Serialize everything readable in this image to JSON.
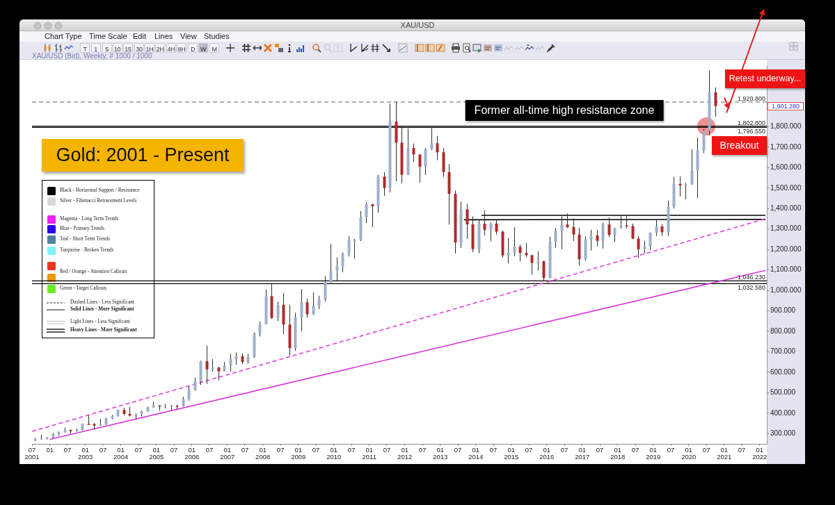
{
  "chart_data": {
    "type": "candlestick",
    "title": "Gold: 2001 - Present",
    "subtitle": "XAU/USD (Bid), Weekly, # 1000 / 1000",
    "marker": "none",
    "xlim": [
      "2001-07",
      "2022-03-15"
    ],
    "ylim": [
      250,
      2100
    ],
    "xticks": [
      {
        "value": "2001-07",
        "label": "07\n2001"
      },
      {
        "value": "2002-01",
        "label": "01"
      },
      {
        "value": "2002-07",
        "label": "07"
      },
      {
        "value": "2003-01",
        "label": "01\n2003"
      },
      {
        "value": "2003-07",
        "label": "07"
      },
      {
        "value": "2004-01",
        "label": "01\n2004"
      },
      {
        "value": "2004-07",
        "label": "07"
      },
      {
        "value": "2005-01",
        "label": "01\n2005"
      },
      {
        "value": "2005-07",
        "label": "07"
      },
      {
        "value": "2006-01",
        "label": "01\n2006"
      },
      {
        "value": "2006-07",
        "label": "07"
      },
      {
        "value": "2007-01",
        "label": "01\n2007"
      },
      {
        "value": "2007-07",
        "label": "07"
      },
      {
        "value": "2008-01",
        "label": "01\n2008"
      },
      {
        "value": "2008-07",
        "label": "07"
      },
      {
        "value": "2009-01",
        "label": "01\n2009"
      },
      {
        "value": "2009-07",
        "label": "07"
      },
      {
        "value": "2010-01",
        "label": "01\n2010"
      },
      {
        "value": "2010-07",
        "label": "07"
      },
      {
        "value": "2011-01",
        "label": "01\n2011"
      },
      {
        "value": "2011-07",
        "label": "07"
      },
      {
        "value": "2012-01",
        "label": "01\n2012"
      },
      {
        "value": "2012-07",
        "label": "07"
      },
      {
        "value": "2013-01",
        "label": "01\n2013"
      },
      {
        "value": "2013-07",
        "label": "07"
      },
      {
        "value": "2014-01",
        "label": "01\n2014"
      },
      {
        "value": "2014-07",
        "label": "07"
      },
      {
        "value": "2015-01",
        "label": "01\n2015"
      },
      {
        "value": "2015-07",
        "label": "07"
      },
      {
        "value": "2016-01",
        "label": "01\n2016"
      },
      {
        "value": "2016-07",
        "label": "07"
      },
      {
        "value": "2017-01",
        "label": "01\n2017"
      },
      {
        "value": "2017-07",
        "label": "07"
      },
      {
        "value": "2018-01",
        "label": "01\n2018"
      },
      {
        "value": "2018-07",
        "label": "07"
      },
      {
        "value": "2019-01",
        "label": "01\n2019"
      },
      {
        "value": "2019-07",
        "label": "07"
      },
      {
        "value": "2020-01",
        "label": "01\n2020"
      },
      {
        "value": "2020-07",
        "label": "07"
      },
      {
        "value": "2021-01",
        "label": "01\n2021"
      },
      {
        "value": "2021-07",
        "label": "07"
      },
      {
        "value": "2022-01",
        "label": "01\n2022"
      }
    ],
    "yticks": [
      {
        "value": 300,
        "label": "300.000"
      },
      {
        "value": 400,
        "label": "400.000"
      },
      {
        "value": 500,
        "label": "500.000"
      },
      {
        "value": 600,
        "label": "600.000"
      },
      {
        "value": 700,
        "label": "700.000"
      },
      {
        "value": 800,
        "label": "800.000"
      },
      {
        "value": 900,
        "label": "900.000"
      },
      {
        "value": 1000,
        "label": "1,000.000"
      },
      {
        "value": 1100,
        "label": "1,100.000"
      },
      {
        "value": 1200,
        "label": "1,200.000"
      },
      {
        "value": 1300,
        "label": "1,300.000"
      },
      {
        "value": 1400,
        "label": "1,400.000"
      },
      {
        "value": 1500,
        "label": "1,500.000"
      },
      {
        "value": 1600,
        "label": "1,600.000"
      },
      {
        "value": 1700,
        "label": "1,700.000"
      },
      {
        "value": 1800,
        "label": "1,800.000"
      }
    ],
    "x": [
      "2001-08",
      "2001-10",
      "2001-12",
      "2002-02",
      "2002-04",
      "2002-06",
      "2002-08",
      "2002-10",
      "2002-12",
      "2003-02",
      "2003-04",
      "2003-06",
      "2003-08",
      "2003-10",
      "2003-12",
      "2004-02",
      "2004-04",
      "2004-06",
      "2004-08",
      "2004-10",
      "2004-12",
      "2005-02",
      "2005-04",
      "2005-06",
      "2005-08",
      "2005-10",
      "2005-12",
      "2006-02",
      "2006-04",
      "2006-06",
      "2006-08",
      "2006-10",
      "2006-12",
      "2007-02",
      "2007-04",
      "2007-06",
      "2007-08",
      "2007-10",
      "2007-12",
      "2008-02",
      "2008-04",
      "2008-06",
      "2008-08",
      "2008-10",
      "2008-12",
      "2009-02",
      "2009-04",
      "2009-06",
      "2009-08",
      "2009-10",
      "2009-12",
      "2010-02",
      "2010-04",
      "2010-06",
      "2010-08",
      "2010-10",
      "2010-12",
      "2011-02",
      "2011-04",
      "2011-06",
      "2011-08",
      "2011-10",
      "2011-12",
      "2012-02",
      "2012-04",
      "2012-06",
      "2012-08",
      "2012-10",
      "2012-12",
      "2013-02",
      "2013-04",
      "2013-06",
      "2013-08",
      "2013-10",
      "2013-12",
      "2014-02",
      "2014-04",
      "2014-06",
      "2014-08",
      "2014-10",
      "2014-12",
      "2015-02",
      "2015-04",
      "2015-06",
      "2015-08",
      "2015-10",
      "2015-12",
      "2016-02",
      "2016-04",
      "2016-06",
      "2016-08",
      "2016-10",
      "2016-12",
      "2017-02",
      "2017-04",
      "2017-06",
      "2017-08",
      "2017-10",
      "2017-12",
      "2018-02",
      "2018-04",
      "2018-06",
      "2018-08",
      "2018-10",
      "2018-12",
      "2019-02",
      "2019-04",
      "2019-06",
      "2019-08",
      "2019-10",
      "2019-12",
      "2020-02",
      "2020-04",
      "2020-06",
      "2020-08",
      "2020-10"
    ],
    "ohlc": [
      [
        266,
        280,
        263,
        273
      ],
      [
        273,
        295,
        270,
        279
      ],
      [
        279,
        283,
        271,
        279
      ],
      [
        279,
        304,
        277,
        297
      ],
      [
        297,
        311,
        289,
        308
      ],
      [
        308,
        330,
        305,
        318
      ],
      [
        318,
        322,
        300,
        312
      ],
      [
        312,
        326,
        309,
        317
      ],
      [
        317,
        350,
        315,
        348
      ],
      [
        348,
        389,
        345,
        347
      ],
      [
        347,
        352,
        320,
        339
      ],
      [
        339,
        372,
        338,
        346
      ],
      [
        346,
        378,
        342,
        375
      ],
      [
        375,
        392,
        370,
        386
      ],
      [
        386,
        418,
        382,
        416
      ],
      [
        416,
        427,
        390,
        396
      ],
      [
        396,
        430,
        384,
        388
      ],
      [
        388,
        398,
        371,
        395
      ],
      [
        395,
        412,
        384,
        409
      ],
      [
        409,
        432,
        405,
        428
      ],
      [
        428,
        456,
        427,
        438
      ],
      [
        438,
        440,
        411,
        435
      ],
      [
        435,
        446,
        423,
        435
      ],
      [
        435,
        441,
        414,
        437
      ],
      [
        437,
        441,
        418,
        433
      ],
      [
        433,
        480,
        432,
        470
      ],
      [
        470,
        530,
        460,
        513
      ],
      [
        513,
        573,
        510,
        556
      ],
      [
        556,
        656,
        538,
        654
      ],
      [
        654,
        730,
        543,
        614
      ],
      [
        614,
        664,
        603,
        623
      ],
      [
        623,
        627,
        560,
        604
      ],
      [
        604,
        650,
        603,
        632
      ],
      [
        632,
        690,
        603,
        665
      ],
      [
        665,
        697,
        637,
        679
      ],
      [
        679,
        693,
        640,
        650
      ],
      [
        650,
        690,
        642,
        673
      ],
      [
        673,
        795,
        670,
        789
      ],
      [
        789,
        848,
        775,
        834
      ],
      [
        834,
        1005,
        834,
        972
      ],
      [
        972,
        1033,
        860,
        865
      ],
      [
        865,
        945,
        850,
        930
      ],
      [
        930,
        988,
        786,
        833
      ],
      [
        833,
        930,
        681,
        718
      ],
      [
        718,
        890,
        705,
        869
      ],
      [
        869,
        1006,
        800,
        942
      ],
      [
        942,
        960,
        866,
        883
      ],
      [
        883,
        990,
        880,
        926
      ],
      [
        926,
        974,
        908,
        955
      ],
      [
        955,
        1070,
        946,
        1040
      ],
      [
        1040,
        1227,
        1035,
        1096
      ],
      [
        1096,
        1162,
        1044,
        1118
      ],
      [
        1118,
        1186,
        1089,
        1180
      ],
      [
        1180,
        1265,
        1166,
        1244
      ],
      [
        1244,
        1252,
        1155,
        1248
      ],
      [
        1248,
        1388,
        1241,
        1357
      ],
      [
        1357,
        1431,
        1330,
        1421
      ],
      [
        1421,
        1423,
        1309,
        1411
      ],
      [
        1411,
        1564,
        1380,
        1556
      ],
      [
        1556,
        1577,
        1462,
        1500
      ],
      [
        1500,
        1913,
        1478,
        1825
      ],
      [
        1825,
        1921,
        1532,
        1722
      ],
      [
        1722,
        1803,
        1523,
        1565
      ],
      [
        1565,
        1791,
        1563,
        1696
      ],
      [
        1696,
        1718,
        1627,
        1664
      ],
      [
        1664,
        1666,
        1527,
        1604
      ],
      [
        1604,
        1696,
        1564,
        1691
      ],
      [
        1691,
        1796,
        1685,
        1719
      ],
      [
        1719,
        1755,
        1636,
        1675
      ],
      [
        1675,
        1696,
        1555,
        1578
      ],
      [
        1578,
        1617,
        1321,
        1472
      ],
      [
        1472,
        1488,
        1180,
        1234
      ],
      [
        1234,
        1434,
        1207,
        1396
      ],
      [
        1396,
        1424,
        1251,
        1323
      ],
      [
        1323,
        1362,
        1187,
        1202
      ],
      [
        1202,
        1345,
        1182,
        1326
      ],
      [
        1326,
        1392,
        1268,
        1296
      ],
      [
        1296,
        1332,
        1240,
        1327
      ],
      [
        1327,
        1345,
        1273,
        1287
      ],
      [
        1287,
        1292,
        1160,
        1171
      ],
      [
        1171,
        1255,
        1132,
        1184
      ],
      [
        1184,
        1308,
        1167,
        1213
      ],
      [
        1213,
        1224,
        1142,
        1183
      ],
      [
        1183,
        1232,
        1162,
        1172
      ],
      [
        1172,
        1175,
        1077,
        1134
      ],
      [
        1134,
        1191,
        1097,
        1142
      ],
      [
        1142,
        1146,
        1046,
        1061
      ],
      [
        1061,
        1263,
        1058,
        1238
      ],
      [
        1238,
        1304,
        1208,
        1293
      ],
      [
        1293,
        1362,
        1200,
        1322
      ],
      [
        1322,
        1375,
        1305,
        1309
      ],
      [
        1309,
        1352,
        1241,
        1273
      ],
      [
        1273,
        1307,
        1123,
        1152
      ],
      [
        1152,
        1264,
        1146,
        1249
      ],
      [
        1249,
        1296,
        1195,
        1269
      ],
      [
        1269,
        1296,
        1215,
        1242
      ],
      [
        1242,
        1331,
        1205,
        1322
      ],
      [
        1322,
        1357,
        1260,
        1271
      ],
      [
        1271,
        1306,
        1236,
        1303
      ],
      [
        1303,
        1366,
        1303,
        1318
      ],
      [
        1318,
        1365,
        1302,
        1315
      ],
      [
        1315,
        1326,
        1250,
        1253
      ],
      [
        1253,
        1265,
        1160,
        1201
      ],
      [
        1201,
        1243,
        1180,
        1215
      ],
      [
        1215,
        1284,
        1196,
        1282
      ],
      [
        1282,
        1346,
        1266,
        1313
      ],
      [
        1313,
        1324,
        1266,
        1284
      ],
      [
        1284,
        1439,
        1266,
        1409
      ],
      [
        1409,
        1555,
        1400,
        1520
      ],
      [
        1520,
        1557,
        1459,
        1513
      ],
      [
        1513,
        1525,
        1445,
        1517
      ],
      [
        1517,
        1689,
        1517,
        1585
      ],
      [
        1585,
        1747,
        1451,
        1686
      ],
      [
        1686,
        1789,
        1670,
        1781
      ],
      [
        1781,
        2075,
        1757,
        1968
      ],
      [
        1968,
        1992,
        1849,
        1901
      ]
    ],
    "colors": [
      "#9fb0cc",
      "#9fb0cc",
      "#9fb0cc",
      "#9fb0cc",
      "#9fb0cc",
      "#9fb0cc",
      "#b02a2a",
      "#9fb0cc",
      "#9fb0cc",
      "#b02a2a",
      "#b02a2a",
      "#9fb0cc",
      "#9fb0cc",
      "#9fb0cc",
      "#9fb0cc",
      "#b02a2a",
      "#b02a2a",
      "#9fb0cc",
      "#9fb0cc",
      "#9fb0cc",
      "#9fb0cc",
      "#b02a2a",
      "#9fb0cc",
      "#9fb0cc",
      "#b02a2a",
      "#9fb0cc",
      "#9fb0cc",
      "#9fb0cc",
      "#9fb0cc",
      "#b02a2a",
      "#9fb0cc",
      "#b02a2a",
      "#9fb0cc",
      "#9fb0cc",
      "#9fb0cc",
      "#b02a2a",
      "#9fb0cc",
      "#9fb0cc",
      "#9fb0cc",
      "#9fb0cc",
      "#b02a2a",
      "#9fb0cc",
      "#b02a2a",
      "#b02a2a",
      "#9fb0cc",
      "#9fb0cc",
      "#b02a2a",
      "#9fb0cc",
      "#9fb0cc",
      "#9fb0cc",
      "#9fb0cc",
      "#9fb0cc",
      "#9fb0cc",
      "#9fb0cc",
      "#9fb0cc",
      "#9fb0cc",
      "#9fb0cc",
      "#b02a2a",
      "#9fb0cc",
      "#b02a2a",
      "#9fb0cc",
      "#b02a2a",
      "#b02a2a",
      "#9fb0cc",
      "#b02a2a",
      "#b02a2a",
      "#9fb0cc",
      "#9fb0cc",
      "#b02a2a",
      "#b02a2a",
      "#b02a2a",
      "#b02a2a",
      "#9fb0cc",
      "#b02a2a",
      "#b02a2a",
      "#9fb0cc",
      "#b02a2a",
      "#9fb0cc",
      "#b02a2a",
      "#b02a2a",
      "#9fb0cc",
      "#9fb0cc",
      "#b02a2a",
      "#b02a2a",
      "#b02a2a",
      "#9fb0cc",
      "#b02a2a",
      "#9fb0cc",
      "#9fb0cc",
      "#9fb0cc",
      "#b02a2a",
      "#b02a2a",
      "#b02a2a",
      "#9fb0cc",
      "#9fb0cc",
      "#b02a2a",
      "#9fb0cc",
      "#b02a2a",
      "#9fb0cc",
      "#9fb0cc",
      "#b02a2a",
      "#b02a2a",
      "#b02a2a",
      "#9fb0cc",
      "#9fb0cc",
      "#9fb0cc",
      "#b02a2a",
      "#9fb0cc",
      "#9fb0cc",
      "#b02a2a",
      "#9fb0cc",
      "#9fb0cc",
      "#9fb0cc",
      "#9fb0cc",
      "#9fb0cc",
      "#b02a2a"
    ],
    "series": [
      {
        "type": "line",
        "x": [
          "2001-07",
          "2022-03"
        ],
        "values": [
          311,
          1350
        ],
        "color": "#e040e0",
        "line_style": "dashed"
      },
      {
        "type": "line",
        "x": [
          "2002-01",
          "2022-03"
        ],
        "values": [
          272,
          1098
        ],
        "color": "#d838d8"
      },
      {
        "type": "line",
        "x": [
          "2013-09",
          "2022-03"
        ],
        "values": [
          1345,
          1347
        ],
        "color": "#000000"
      },
      {
        "type": "line",
        "x": [
          "2014-03",
          "2022-03"
        ],
        "values": [
          1367,
          1367
        ],
        "color": "#000000"
      }
    ],
    "ref_lines": [
      {
        "axis": "y",
        "value": 1920.8,
        "label": "1,920.800",
        "color": "#808080",
        "line_style": "dashed"
      },
      {
        "axis": "y",
        "value": 1802.8,
        "label": "1,802.800",
        "color": "#000000"
      },
      {
        "axis": "y",
        "value": 1796.55,
        "label": "1,796.550",
        "color": "#000000"
      },
      {
        "axis": "y",
        "value": 1046.23,
        "label": "1,046.230",
        "color": "#000000"
      },
      {
        "axis": "y",
        "value": 1032.58,
        "label": "1,032.580",
        "color": "#000000"
      }
    ],
    "annotations": [
      {
        "text": "Breakout",
        "x": "2020-07",
        "y": 1800
      },
      "Former all-time high resistance zone",
      "Retest underway...",
      "1,901.280",
      "XAU/USD",
      "Chart Type",
      "Time Scale",
      "Edit",
      "Lines",
      "View",
      "Studies",
      "T 1 5 10 15 30 1H 2H 4H 8H D W M",
      "Black - Horizontal Support / Resistance",
      "Silver - Fibonacci Retracement Levels",
      "Magenta - Long Term Trends",
      "Blue - Primary Trends",
      "Teal - Short Term Trends",
      "Turquoise - Broken Trends",
      "Red / Orange - Attention Callouts",
      "Green - Target Callouts",
      "Dashed Lines - Less Significant",
      "Solid Lines - More Significant",
      "Light Lines - Less Significant",
      "Heavy Lines - More Significant"
    ]
  }
}
